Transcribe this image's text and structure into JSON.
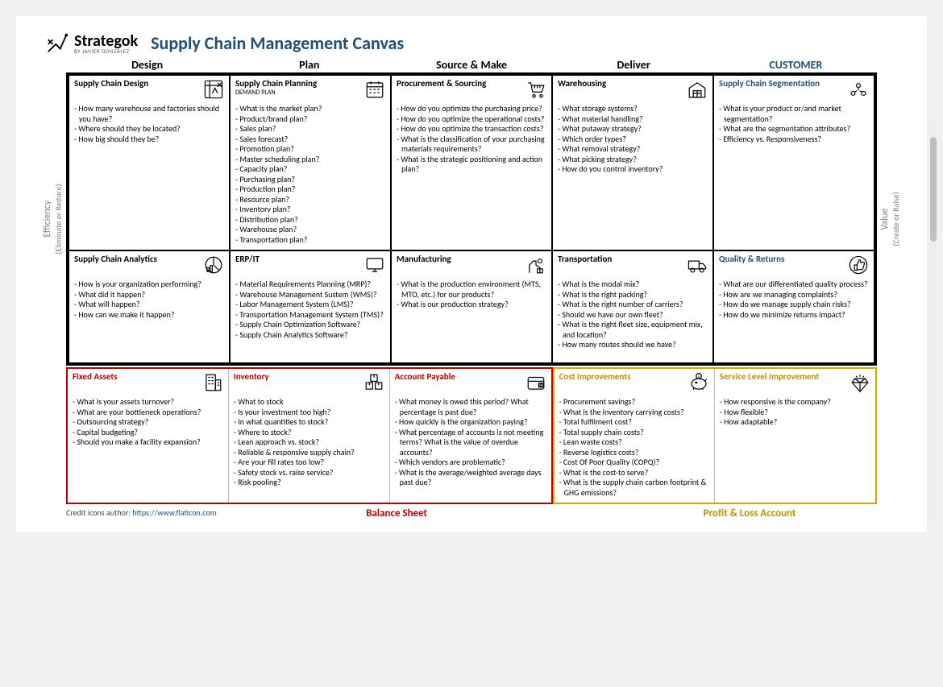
{
  "brand": {
    "name": "Strategok",
    "byline": "BY JAVIER GONZALEZ"
  },
  "title": "Supply Chain Management Canvas",
  "columns": [
    "Design",
    "Plan",
    "Source & Make",
    "Deliver",
    "CUSTOMER"
  ],
  "side_labels": {
    "left_main": "Efficiency",
    "left_sub": "(Eliminate or Reduce)",
    "right_main": "Value",
    "right_sub": "(Create or Raise)"
  },
  "row1": [
    {
      "title": "Supply Chain Design",
      "sub": "",
      "icon": "blueprint",
      "items": [
        "How many warehouse and factories should you have?",
        "Where should they be located?",
        "How big should they be?"
      ]
    },
    {
      "title": "Supply Chain Planning",
      "sub": "DEMAND PLAN",
      "icon": "calendar",
      "items": [
        "What is the market plan?",
        "Product/brand plan?",
        "Sales plan?",
        "Sales forecast?",
        "Promotion plan?",
        "Master scheduling plan?",
        "Capacity plan?",
        "Purchasing plan?",
        "Production plan?",
        "Resource plan?",
        "Inventory plan?",
        "Distribution plan?",
        "Warehouse plan?",
        "Transportation plan?"
      ]
    },
    {
      "title": "Procurement & Sourcing",
      "sub": "",
      "icon": "cart",
      "items": [
        "How do you optimize the purchasing price?",
        "How do you optimize the operational costs?",
        "How do you optimize the transaction costs?",
        "What is the classification of your purchasing materials requirements?",
        "What is the strategic positioning and action plan?"
      ]
    },
    {
      "title": "Warehousing",
      "sub": "",
      "icon": "warehouse",
      "items": [
        "What storage systems?",
        "What material handling?",
        "What putaway strategy?",
        "Which order types?",
        "What removal strategy?",
        "What picking strategy?",
        "How do you control inventory?"
      ]
    },
    {
      "title": "Supply Chain Segmentation",
      "sub": "",
      "icon": "segment",
      "items": [
        "What is your product or/and market segmentation?",
        "What are the segmentation attributes?",
        "Efficiency vs. Responsiveness?"
      ]
    }
  ],
  "row2": [
    {
      "title": "Supply Chain Analytics",
      "sub": "",
      "icon": "analytics",
      "items": [
        "How is your organization performing?",
        "What did it happen?",
        "What will happen?",
        "How can we make it happen?"
      ]
    },
    {
      "title": "ERP/IT",
      "sub": "",
      "icon": "monitor",
      "items": [
        "Material Requirements Planning (MRP)?",
        "Warehouse Management Sustem (WMS)?",
        "Labor Management System (LMS)?",
        "Transportation Management System (TMS)?",
        "Supply Chain Optimization Software?",
        "Supply Chain Analytics Software?"
      ]
    },
    {
      "title": "Manufacturing",
      "sub": "",
      "icon": "robot",
      "items": [
        "What is the production environment (MTS, MTO, etc.) for our products?",
        "What is our production strategy?"
      ]
    },
    {
      "title": "Transportation",
      "sub": "",
      "icon": "truck",
      "items": [
        "What is the modal mix?",
        "What is the right packing?",
        "What is the right number of carriers?",
        "Should we have our own fleet?",
        "What is the right fleet size, equipment mix, and location?",
        "How many routes should we have?"
      ]
    },
    {
      "title": "Quality & Returns",
      "sub": "",
      "icon": "thumbup",
      "items": [
        "What are our differentiated quality process?",
        "How are we managing complaints?",
        "How do we manage supply chain risks?",
        "How do we minimize returns impact?"
      ]
    }
  ],
  "bottom_red": [
    {
      "title": "Fixed Assets",
      "icon": "building",
      "items": [
        "What is your assets turnover?",
        "What are your bottleneck operations?",
        "Outsourcing strategy?",
        "Capital budgeting?",
        "Should you make a facility expansion?"
      ]
    },
    {
      "title": "Inventory",
      "icon": "boxes",
      "items": [
        "What to stock",
        "Is your investment too high?",
        "In what quantities to stock?",
        "Where to stock?",
        "Lean approach vs. stock?",
        "Reliable & responsive supply chain?",
        "Are your fill rates too low?",
        "Safety stock vs. raise service?",
        "Risk pooling?"
      ]
    },
    {
      "title": "Account Payable",
      "icon": "wallet",
      "items": [
        "What money is owed this period? What percentage is past due?",
        "How quickly is the organization paying?",
        "What percentage of accounts is not meeting terms? What is the value of overdue accounts?",
        "Which vendors are problematic?",
        "What is the average/weighted average days past due?"
      ]
    }
  ],
  "bottom_yellow": [
    {
      "title": "Cost Improvements",
      "icon": "piggy",
      "items": [
        "Procurement savings?",
        "What is the inventory carrying costs?",
        "Total fulfilment cost?",
        "Total supply chain costs?",
        "Lean waste costs?",
        "Reverse logistics costs?",
        "Cost Of Poor Quality (COPQ)?",
        "What is the cost-to serve?",
        "What is the supply chain carbon footprint & GHG emissions?"
      ]
    },
    {
      "title": "Service Level Improvement",
      "icon": "diamond",
      "items": [
        "How responsive is the company?",
        "How flexible?",
        "How adaptable?"
      ]
    }
  ],
  "footer": {
    "credit_prefix": "Credit icons author: ",
    "credit_link": "https://www.flaticon.com",
    "balance_sheet": "Balance Sheet",
    "profit_loss": "Profit & Loss Account"
  },
  "colors": {
    "title": "#1f4e79",
    "red": "#c00000",
    "yellow": "#bf8f00",
    "text": "#000000",
    "bg": "#ffffff"
  }
}
